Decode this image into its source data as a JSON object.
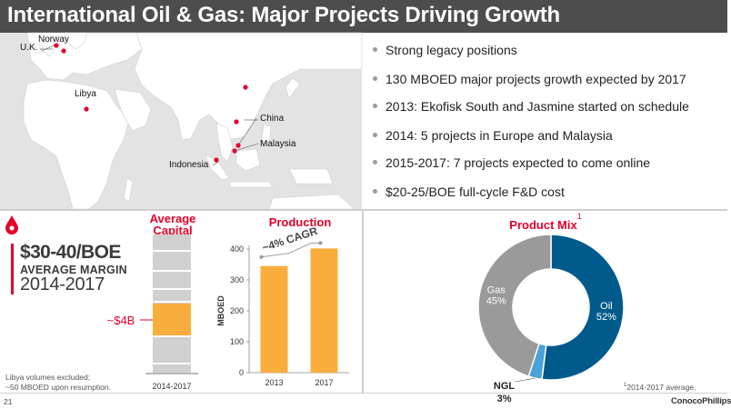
{
  "slide": {
    "title": "International Oil & Gas: Major Projects Driving Growth",
    "page_number": "21",
    "logo": "ConocoPhillips",
    "footnote": "2014-2017 average.",
    "footnote_marker": "1",
    "libya_note": [
      "Libya volumes excluded;",
      "~50 MBOED upon resumption."
    ]
  },
  "map": {
    "locations": [
      "Norway",
      "U.K.",
      "Libya",
      "China",
      "Malaysia",
      "Indonesia"
    ],
    "background_color": "#e3e3e3",
    "land_color": "#ffffff",
    "marker_color": "#e4002b"
  },
  "bullets": [
    "Strong legacy positions",
    "130 MBOED major projects growth expected by 2017",
    "2013: Ekofisk South and Jasmine started on schedule",
    "2014: 5 projects in Europe and Malaysia",
    "2015-2017: 7 projects expected to come online",
    "$20-25/BOE full-cycle F&D cost"
  ],
  "margin_callout": {
    "line1": "$30-40/BOE",
    "line2": "AVERAGE MARGIN",
    "line3": "2014-2017"
  },
  "chart_data": [
    {
      "type": "bar",
      "title": "Average Capital",
      "categories": [
        "2014-2017"
      ],
      "highlight_label": "~$4B",
      "highlight_color": "#f9ad3c",
      "base_color": "#d0d0d0"
    },
    {
      "type": "bar",
      "title": "Production",
      "ylabel": "MBOED",
      "categories": [
        "2013",
        "2017"
      ],
      "values": [
        345,
        402
      ],
      "ylim": [
        0,
        400
      ],
      "yticks": [
        0,
        100,
        200,
        300,
        400
      ],
      "annotation": "~4% CAGR",
      "bar_color": "#f9ad3c"
    },
    {
      "type": "pie",
      "title": "Product Mix",
      "title_superscript": "1",
      "slices": [
        {
          "label": "Oil",
          "value": 52,
          "value_label": "52%",
          "color": "#005a8c"
        },
        {
          "label": "NGL",
          "value": 3,
          "value_label": "3%",
          "color": "#4aa3d8"
        },
        {
          "label": "Gas",
          "value": 45,
          "value_label": "45%",
          "color": "#9a9a9a"
        }
      ]
    }
  ]
}
